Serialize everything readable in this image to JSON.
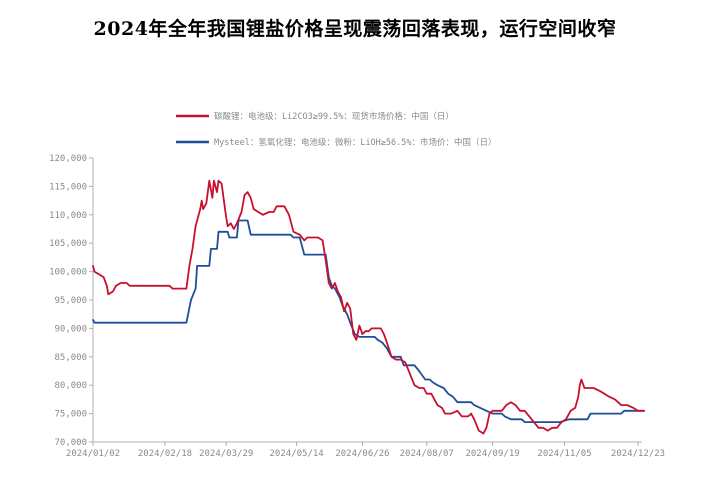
{
  "headline": "2024年全年我国锂盐价格呈现震荡回落表现，运行空间收窄",
  "chart_data": {
    "type": "line",
    "title": "",
    "xlabel": "",
    "ylabel": "",
    "ylim": [
      70000,
      120000
    ],
    "y_ticks": [
      "70,000",
      "75,000",
      "80,000",
      "85,000",
      "90,000",
      "95,000",
      "100,000",
      "105,000",
      "110,000",
      "115,000",
      "120,000"
    ],
    "x_tick_labels": [
      "2024/01/02",
      "2024/02/18",
      "2024/03/29",
      "2024/05/14",
      "2024/06/26",
      "2024/08/07",
      "2024/09/19",
      "2024/11/05",
      "2024/12/23"
    ],
    "x_tick_dates": [
      "2024-01-02",
      "2024-02-18",
      "2024-03-29",
      "2024-05-14",
      "2024-06-26",
      "2024-08-07",
      "2024-09-19",
      "2024-11-05",
      "2024-12-23"
    ],
    "grid": false,
    "legend_position": "top",
    "series": [
      {
        "name": "碳酸锂：电池级：Li2CO3≥99.5%：现货市场价格：中国（日）",
        "color": "#c8102e",
        "points": [
          [
            "2024-01-02",
            101000
          ],
          [
            "2024-01-03",
            100000
          ],
          [
            "2024-01-06",
            99500
          ],
          [
            "2024-01-09",
            99000
          ],
          [
            "2024-01-11",
            97500
          ],
          [
            "2024-01-12",
            96000
          ],
          [
            "2024-01-15",
            96500
          ],
          [
            "2024-01-17",
            97500
          ],
          [
            "2024-01-20",
            98000
          ],
          [
            "2024-01-24",
            98000
          ],
          [
            "2024-01-26",
            97500
          ],
          [
            "2024-02-05",
            97500
          ],
          [
            "2024-02-15",
            97500
          ],
          [
            "2024-02-21",
            97500
          ],
          [
            "2024-02-23",
            97000
          ],
          [
            "2024-02-27",
            97000
          ],
          [
            "2024-03-03",
            97000
          ],
          [
            "2024-03-05",
            101000
          ],
          [
            "2024-03-07",
            104000
          ],
          [
            "2024-03-09",
            108000
          ],
          [
            "2024-03-12",
            111000
          ],
          [
            "2024-03-13",
            112500
          ],
          [
            "2024-03-14",
            111000
          ],
          [
            "2024-03-16",
            112000
          ],
          [
            "2024-03-18",
            116000
          ],
          [
            "2024-03-20",
            113000
          ],
          [
            "2024-03-21",
            116000
          ],
          [
            "2024-03-23",
            114000
          ],
          [
            "2024-03-24",
            116000
          ],
          [
            "2024-03-26",
            115500
          ],
          [
            "2024-03-29",
            109500
          ],
          [
            "2024-03-30",
            108000
          ],
          [
            "2024-04-01",
            108500
          ],
          [
            "2024-04-03",
            107500
          ],
          [
            "2024-04-05",
            108500
          ],
          [
            "2024-04-08",
            110500
          ],
          [
            "2024-04-10",
            113500
          ],
          [
            "2024-04-12",
            114000
          ],
          [
            "2024-04-14",
            113000
          ],
          [
            "2024-04-16",
            111000
          ],
          [
            "2024-04-19",
            110500
          ],
          [
            "2024-04-22",
            110000
          ],
          [
            "2024-04-26",
            110500
          ],
          [
            "2024-04-29",
            110500
          ],
          [
            "2024-05-01",
            111500
          ],
          [
            "2024-05-06",
            111500
          ],
          [
            "2024-05-09",
            110000
          ],
          [
            "2024-05-12",
            107000
          ],
          [
            "2024-05-16",
            106500
          ],
          [
            "2024-05-19",
            105500
          ],
          [
            "2024-05-21",
            106000
          ],
          [
            "2024-05-24",
            106000
          ],
          [
            "2024-05-28",
            106000
          ],
          [
            "2024-05-31",
            105500
          ],
          [
            "2024-06-02",
            102000
          ],
          [
            "2024-06-04",
            98000
          ],
          [
            "2024-06-06",
            97000
          ],
          [
            "2024-06-08",
            98000
          ],
          [
            "2024-06-10",
            96500
          ],
          [
            "2024-06-12",
            95500
          ],
          [
            "2024-06-14",
            93000
          ],
          [
            "2024-06-16",
            94500
          ],
          [
            "2024-06-18",
            93500
          ],
          [
            "2024-06-20",
            89000
          ],
          [
            "2024-06-22",
            88000
          ],
          [
            "2024-06-24",
            90500
          ],
          [
            "2024-06-26",
            89000
          ],
          [
            "2024-06-28",
            89500
          ],
          [
            "2024-06-30",
            89500
          ],
          [
            "2024-07-02",
            90000
          ],
          [
            "2024-07-04",
            90000
          ],
          [
            "2024-07-08",
            90000
          ],
          [
            "2024-07-10",
            89000
          ],
          [
            "2024-07-12",
            87500
          ],
          [
            "2024-07-15",
            85000
          ],
          [
            "2024-07-18",
            84500
          ],
          [
            "2024-07-21",
            84500
          ],
          [
            "2024-07-24",
            84000
          ],
          [
            "2024-07-27",
            82000
          ],
          [
            "2024-07-30",
            80000
          ],
          [
            "2024-08-02",
            79500
          ],
          [
            "2024-08-05",
            79500
          ],
          [
            "2024-08-07",
            78500
          ],
          [
            "2024-08-10",
            78500
          ],
          [
            "2024-08-12",
            77500
          ],
          [
            "2024-08-14",
            76500
          ],
          [
            "2024-08-17",
            76000
          ],
          [
            "2024-08-19",
            75000
          ],
          [
            "2024-08-23",
            75000
          ],
          [
            "2024-08-27",
            75500
          ],
          [
            "2024-08-30",
            74500
          ],
          [
            "2024-09-03",
            74500
          ],
          [
            "2024-09-05",
            75000
          ],
          [
            "2024-09-07",
            74000
          ],
          [
            "2024-09-10",
            72000
          ],
          [
            "2024-09-13",
            71500
          ],
          [
            "2024-09-15",
            72500
          ],
          [
            "2024-09-17",
            75000
          ],
          [
            "2024-09-19",
            75500
          ],
          [
            "2024-09-22",
            75500
          ],
          [
            "2024-09-25",
            75500
          ],
          [
            "2024-09-28",
            76500
          ],
          [
            "2024-10-01",
            77000
          ],
          [
            "2024-10-04",
            76500
          ],
          [
            "2024-10-07",
            75500
          ],
          [
            "2024-10-10",
            75500
          ],
          [
            "2024-10-13",
            74500
          ],
          [
            "2024-10-16",
            73500
          ],
          [
            "2024-10-19",
            72500
          ],
          [
            "2024-10-22",
            72500
          ],
          [
            "2024-10-25",
            72000
          ],
          [
            "2024-10-28",
            72500
          ],
          [
            "2024-10-31",
            72500
          ],
          [
            "2024-11-03",
            73500
          ],
          [
            "2024-11-06",
            74000
          ],
          [
            "2024-11-09",
            75500
          ],
          [
            "2024-11-12",
            76000
          ],
          [
            "2024-11-14",
            78000
          ],
          [
            "2024-11-15",
            80000
          ],
          [
            "2024-11-16",
            81000
          ],
          [
            "2024-11-18",
            79500
          ],
          [
            "2024-11-21",
            79500
          ],
          [
            "2024-11-24",
            79500
          ],
          [
            "2024-11-28",
            79000
          ],
          [
            "2024-12-01",
            78500
          ],
          [
            "2024-12-04",
            78000
          ],
          [
            "2024-12-08",
            77500
          ],
          [
            "2024-12-12",
            76500
          ],
          [
            "2024-12-16",
            76500
          ],
          [
            "2024-12-20",
            76000
          ],
          [
            "2024-12-23",
            75500
          ],
          [
            "2024-12-27",
            75500
          ]
        ]
      },
      {
        "name": "Mysteel：氢氧化锂：电池级：微粉：LiOH≥56.5%：市场价：中国（日）",
        "color": "#1f4e99",
        "points": [
          [
            "2024-01-02",
            91500
          ],
          [
            "2024-01-03",
            91000
          ],
          [
            "2024-01-15",
            91000
          ],
          [
            "2024-02-01",
            91000
          ],
          [
            "2024-02-15",
            91000
          ],
          [
            "2024-02-27",
            91000
          ],
          [
            "2024-03-03",
            91000
          ],
          [
            "2024-03-06",
            95000
          ],
          [
            "2024-03-09",
            97000
          ],
          [
            "2024-03-10",
            101000
          ],
          [
            "2024-03-18",
            101000
          ],
          [
            "2024-03-19",
            104000
          ],
          [
            "2024-03-23",
            104000
          ],
          [
            "2024-03-24",
            107000
          ],
          [
            "2024-03-30",
            107000
          ],
          [
            "2024-03-31",
            106000
          ],
          [
            "2024-04-05",
            106000
          ],
          [
            "2024-04-06",
            109000
          ],
          [
            "2024-04-12",
            109000
          ],
          [
            "2024-04-14",
            106500
          ],
          [
            "2024-04-25",
            106500
          ],
          [
            "2024-05-10",
            106500
          ],
          [
            "2024-05-12",
            106000
          ],
          [
            "2024-05-16",
            106000
          ],
          [
            "2024-05-19",
            103000
          ],
          [
            "2024-06-02",
            103000
          ],
          [
            "2024-06-04",
            99000
          ],
          [
            "2024-06-06",
            97500
          ],
          [
            "2024-06-08",
            97000
          ],
          [
            "2024-06-11",
            95500
          ],
          [
            "2024-06-13",
            94000
          ],
          [
            "2024-06-16",
            92500
          ],
          [
            "2024-06-18",
            91000
          ],
          [
            "2024-06-21",
            89000
          ],
          [
            "2024-06-24",
            88500
          ],
          [
            "2024-07-04",
            88500
          ],
          [
            "2024-07-06",
            88000
          ],
          [
            "2024-07-09",
            87500
          ],
          [
            "2024-07-12",
            86500
          ],
          [
            "2024-07-15",
            85000
          ],
          [
            "2024-07-21",
            85000
          ],
          [
            "2024-07-23",
            83500
          ],
          [
            "2024-07-30",
            83500
          ],
          [
            "2024-08-02",
            82500
          ],
          [
            "2024-08-06",
            81000
          ],
          [
            "2024-08-09",
            81000
          ],
          [
            "2024-08-11",
            80500
          ],
          [
            "2024-08-14",
            80000
          ],
          [
            "2024-08-18",
            79500
          ],
          [
            "2024-08-21",
            78500
          ],
          [
            "2024-08-24",
            78000
          ],
          [
            "2024-08-27",
            77000
          ],
          [
            "2024-09-05",
            77000
          ],
          [
            "2024-09-07",
            76500
          ],
          [
            "2024-09-11",
            76000
          ],
          [
            "2024-09-15",
            75500
          ],
          [
            "2024-09-19",
            75000
          ],
          [
            "2024-09-25",
            75000
          ],
          [
            "2024-09-27",
            74500
          ],
          [
            "2024-10-01",
            74000
          ],
          [
            "2024-10-08",
            74000
          ],
          [
            "2024-10-10",
            73500
          ],
          [
            "2024-10-31",
            73500
          ],
          [
            "2024-11-02",
            73500
          ],
          [
            "2024-11-08",
            74000
          ],
          [
            "2024-11-20",
            74000
          ],
          [
            "2024-11-22",
            75000
          ],
          [
            "2024-12-12",
            75000
          ],
          [
            "2024-12-14",
            75500
          ],
          [
            "2024-12-27",
            75500
          ]
        ]
      }
    ]
  }
}
